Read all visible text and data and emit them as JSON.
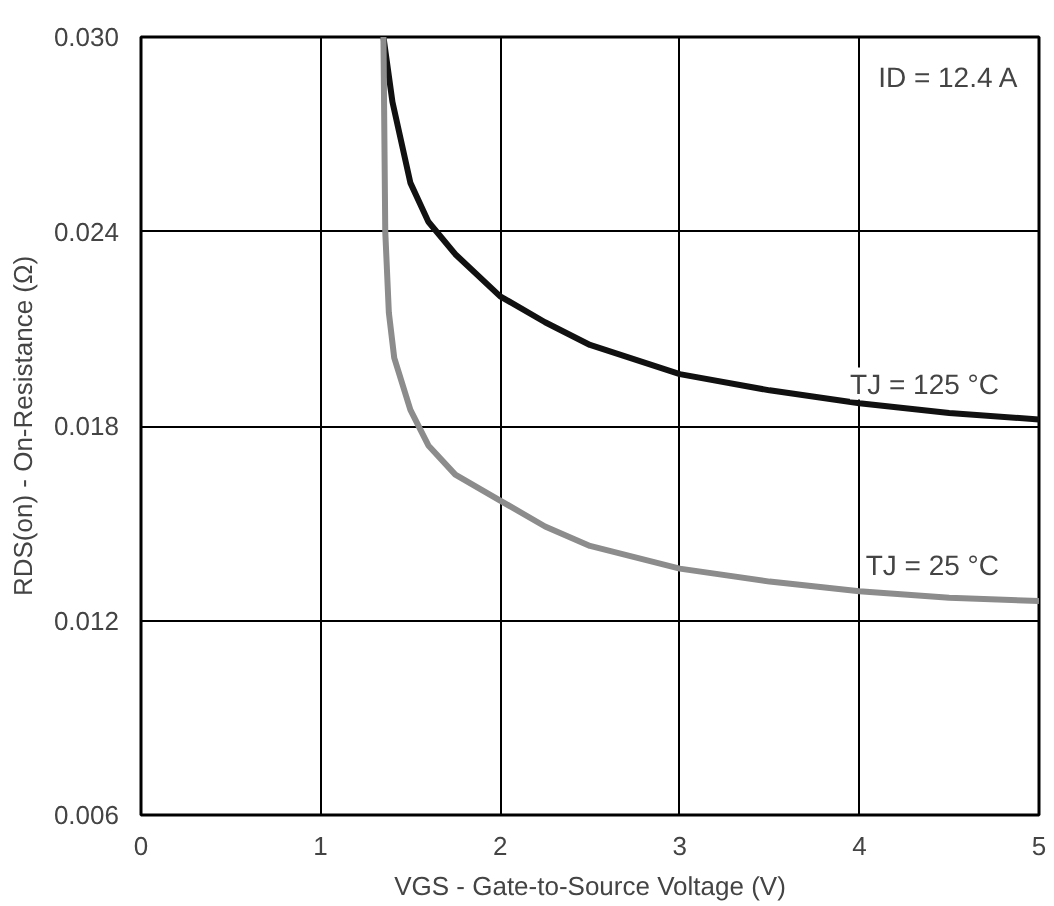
{
  "chart_data": {
    "type": "line",
    "xlabel": "VGS - Gate-to-Source Voltage (V)",
    "ylabel": "RDS(on) - On-Resistance (Ω)",
    "series": [
      {
        "name": "TJ = 125 °C",
        "color": "#111111",
        "x": [
          1.35,
          1.4,
          1.5,
          1.6,
          1.75,
          2.0,
          2.25,
          2.5,
          3.0,
          3.5,
          4.0,
          4.5,
          5.0
        ],
        "values": [
          0.03,
          0.028,
          0.0255,
          0.0243,
          0.0233,
          0.022,
          0.0212,
          0.0205,
          0.0196,
          0.0191,
          0.0187,
          0.0184,
          0.0182
        ]
      },
      {
        "name": "TJ = 25 °C",
        "color": "#8c8c8c",
        "x": [
          1.35,
          1.36,
          1.38,
          1.41,
          1.5,
          1.6,
          1.75,
          2.0,
          2.25,
          2.5,
          3.0,
          3.5,
          4.0,
          4.5,
          5.0
        ],
        "values": [
          0.03,
          0.024,
          0.0215,
          0.0201,
          0.0185,
          0.0174,
          0.0165,
          0.0157,
          0.0149,
          0.0143,
          0.0136,
          0.0132,
          0.0129,
          0.0127,
          0.0126
        ]
      }
    ],
    "annotations": [
      "ID = 12.4 A"
    ],
    "xlim": [
      0,
      5
    ],
    "ylim": [
      0.006,
      0.03
    ],
    "xticks": [
      0,
      1,
      2,
      3,
      4,
      5
    ],
    "yticks": [
      {
        "value": 0.006,
        "label": "0.006"
      },
      {
        "value": 0.012,
        "label": "0.012"
      },
      {
        "value": 0.018,
        "label": "0.018"
      },
      {
        "value": 0.024,
        "label": "0.024"
      },
      {
        "value": 0.03,
        "label": "0.030"
      }
    ],
    "grid": true,
    "line_style": "solid",
    "marker": "none"
  }
}
